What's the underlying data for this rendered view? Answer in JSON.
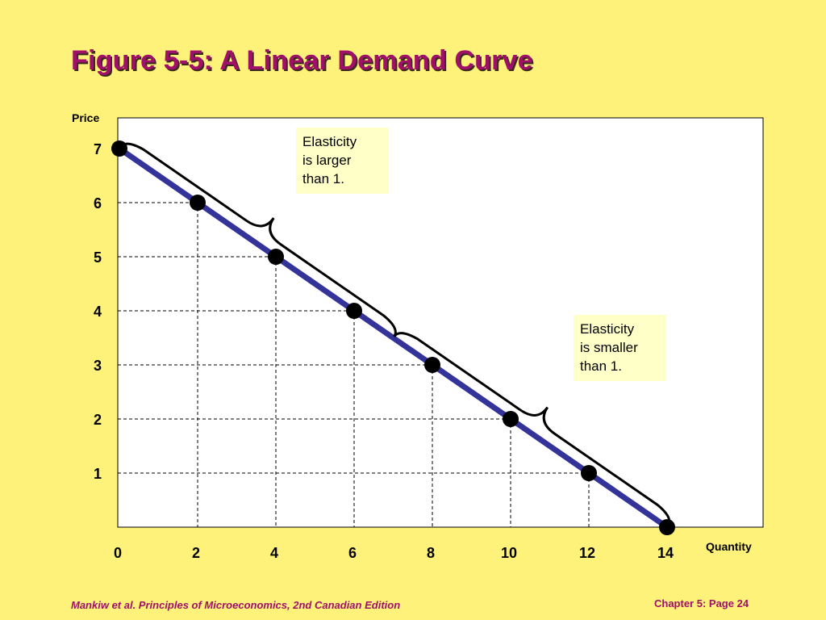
{
  "slide": {
    "title": "Figure 5-5: A Linear Demand Curve",
    "footer_left": "Mankiw et al. Principles of Microeconomics, 2nd Canadian Edition",
    "footer_right": "Chapter 5: Page 24"
  },
  "annotations": {
    "larger": [
      "Elasticity",
      "is larger",
      "than 1."
    ],
    "smaller": [
      "Elasticity",
      "is smaller",
      "than 1."
    ]
  },
  "colors": {
    "background": "#fff27a",
    "title": "#a0106a",
    "demand_line": "#333399",
    "point": "#000000",
    "note_box": "#ffffc8"
  },
  "chart_data": {
    "type": "line",
    "xlabel": "Quantity",
    "ylabel": "Price",
    "x_ticks": [
      "0",
      "2",
      "4",
      "6",
      "8",
      "10",
      "12",
      "14"
    ],
    "y_ticks": [
      "1",
      "2",
      "3",
      "4",
      "5",
      "6",
      "7"
    ],
    "xlim": [
      0,
      14
    ],
    "ylim": [
      0,
      7.5
    ],
    "grid": "dashed guide lines from each point to both axes",
    "series": [
      {
        "points": [
          {
            "x": 0,
            "y": 7
          },
          {
            "x": 2,
            "y": 6
          },
          {
            "x": 4,
            "y": 5
          },
          {
            "x": 6,
            "y": 4
          },
          {
            "x": 8,
            "y": 3
          },
          {
            "x": 10,
            "y": 2
          },
          {
            "x": 12,
            "y": 1
          },
          {
            "x": 14,
            "y": 0
          }
        ]
      }
    ],
    "braces": [
      {
        "from_x": 0,
        "to_x": 7,
        "label": "Elasticity is larger than 1."
      },
      {
        "from_x": 7,
        "to_x": 14,
        "label": "Elasticity is smaller than 1."
      }
    ]
  }
}
